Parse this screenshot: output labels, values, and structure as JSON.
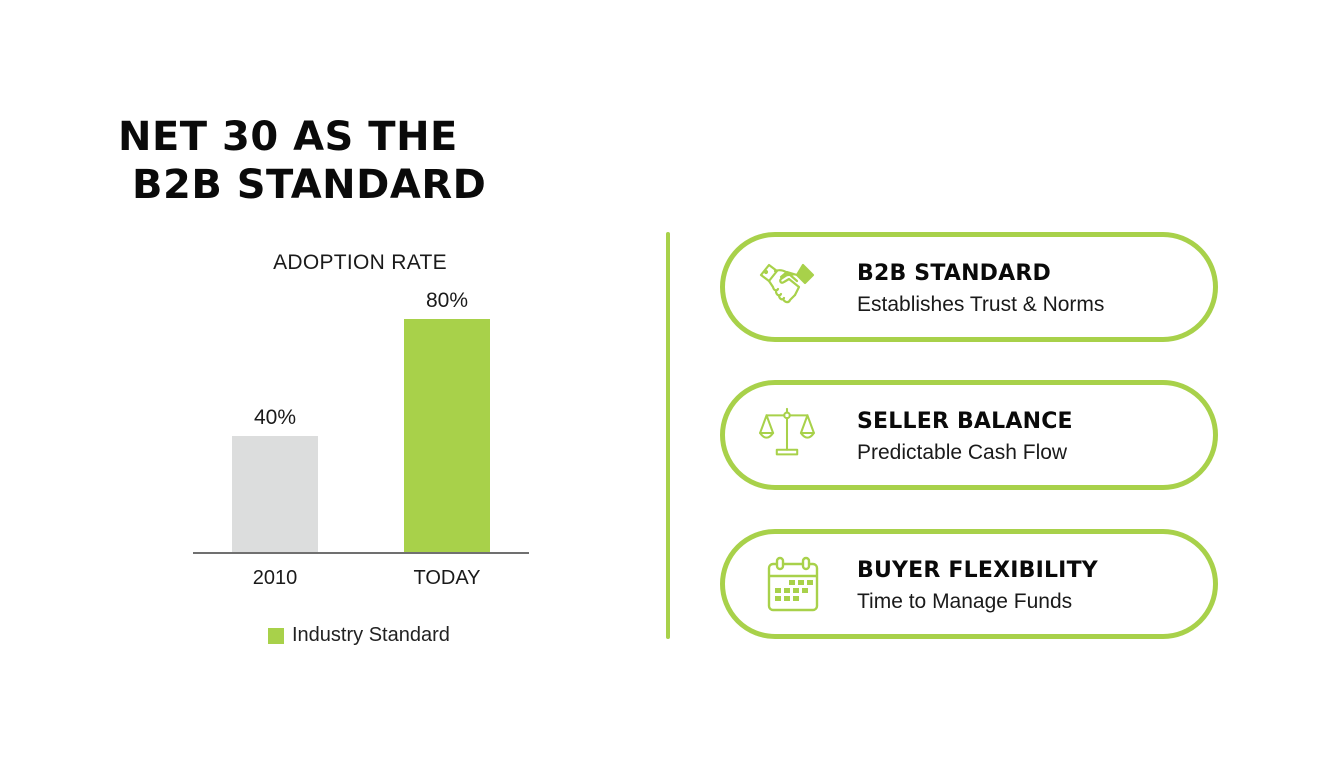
{
  "title": {
    "line1": "NET 30 AS THE",
    "line2": "B2B STANDARD"
  },
  "colors": {
    "accent": "#a8d14a",
    "gray_bar": "#dcdddd",
    "axis": "#707070",
    "text": "#111111"
  },
  "chart_data": {
    "type": "bar",
    "title": "ADOPTION RATE",
    "categories": [
      "2010",
      "TODAY"
    ],
    "values": [
      40,
      80
    ],
    "value_labels": [
      "40%",
      "80%"
    ],
    "bar_colors": [
      "#dcdddd",
      "#a8d14a"
    ],
    "xlabel": "",
    "ylabel": "",
    "ylim": [
      0,
      100
    ],
    "grid": false,
    "legend": {
      "position": "bottom",
      "entries": [
        {
          "label": "Industry Standard",
          "color": "#a8d14a"
        }
      ]
    }
  },
  "cards": [
    {
      "icon": "handshake-icon",
      "heading": "B2B STANDARD",
      "sub": "Establishes Trust & Norms"
    },
    {
      "icon": "scale-icon",
      "heading": "SELLER BALANCE",
      "sub": "Predictable Cash Flow"
    },
    {
      "icon": "calendar-icon",
      "heading": "BUYER FLEXIBILITY",
      "sub": "Time to Manage Funds"
    }
  ]
}
